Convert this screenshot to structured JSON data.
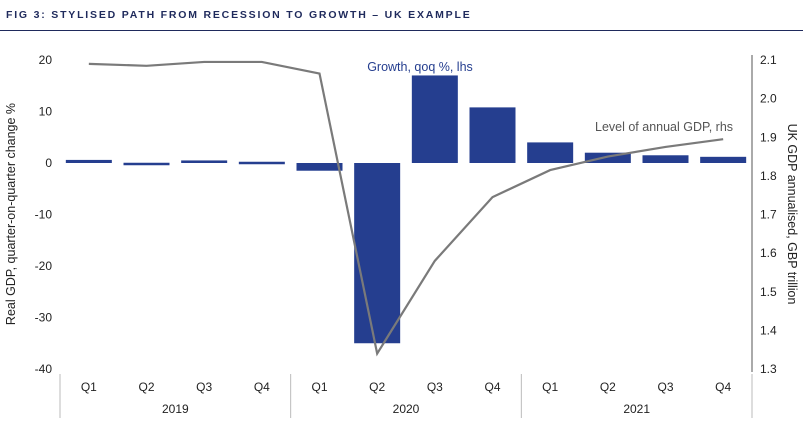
{
  "header": {
    "title": "FIG 3: STYLISED PATH FROM RECESSION TO GROWTH – UK EXAMPLE"
  },
  "chart_data": {
    "type": "bar+line",
    "title": "FIG 3: STYLISED PATH FROM RECESSION TO GROWTH – UK EXAMPLE",
    "categories": [
      "Q1",
      "Q2",
      "Q3",
      "Q4",
      "Q1",
      "Q2",
      "Q3",
      "Q4",
      "Q1",
      "Q2",
      "Q3",
      "Q4"
    ],
    "years": [
      {
        "label": "2019",
        "start": 0,
        "end": 3
      },
      {
        "label": "2020",
        "start": 4,
        "end": 7
      },
      {
        "label": "2021",
        "start": 8,
        "end": 11
      }
    ],
    "series": [
      {
        "name": "Growth, qoq %, lhs",
        "axis": "left",
        "kind": "bar",
        "color": "#253e8f",
        "values": [
          0.6,
          -0.2,
          0.5,
          0.0,
          -1.5,
          -35.0,
          17.0,
          10.8,
          4.0,
          2.0,
          1.5,
          1.2
        ]
      },
      {
        "name": "Level of annual GDP, rhs",
        "axis": "right",
        "kind": "line",
        "color": "#7a7a7a",
        "values": [
          2.09,
          2.085,
          2.095,
          2.095,
          2.065,
          1.34,
          1.58,
          1.745,
          1.815,
          1.85,
          1.875,
          1.895
        ]
      }
    ],
    "ylabel_left": "Real GDP, quarter-on-quarter change %",
    "ylabel_right": "UK GDP annualised, GBP trillion",
    "ylim_left": [
      -40,
      20
    ],
    "yticks_left": [
      "20",
      "10",
      "0",
      "-10",
      "-20",
      "-30",
      "-40"
    ],
    "ylim_right": [
      1.3,
      2.1
    ],
    "yticks_right": [
      "2.1",
      "2.0",
      "1.9",
      "1.8",
      "1.7",
      "1.6",
      "1.5",
      "1.4",
      "1.3"
    ],
    "annotations": {
      "bar_label": "Growth, qoq %, lhs",
      "line_label": "Level of annual GDP, rhs"
    },
    "grid": false
  }
}
